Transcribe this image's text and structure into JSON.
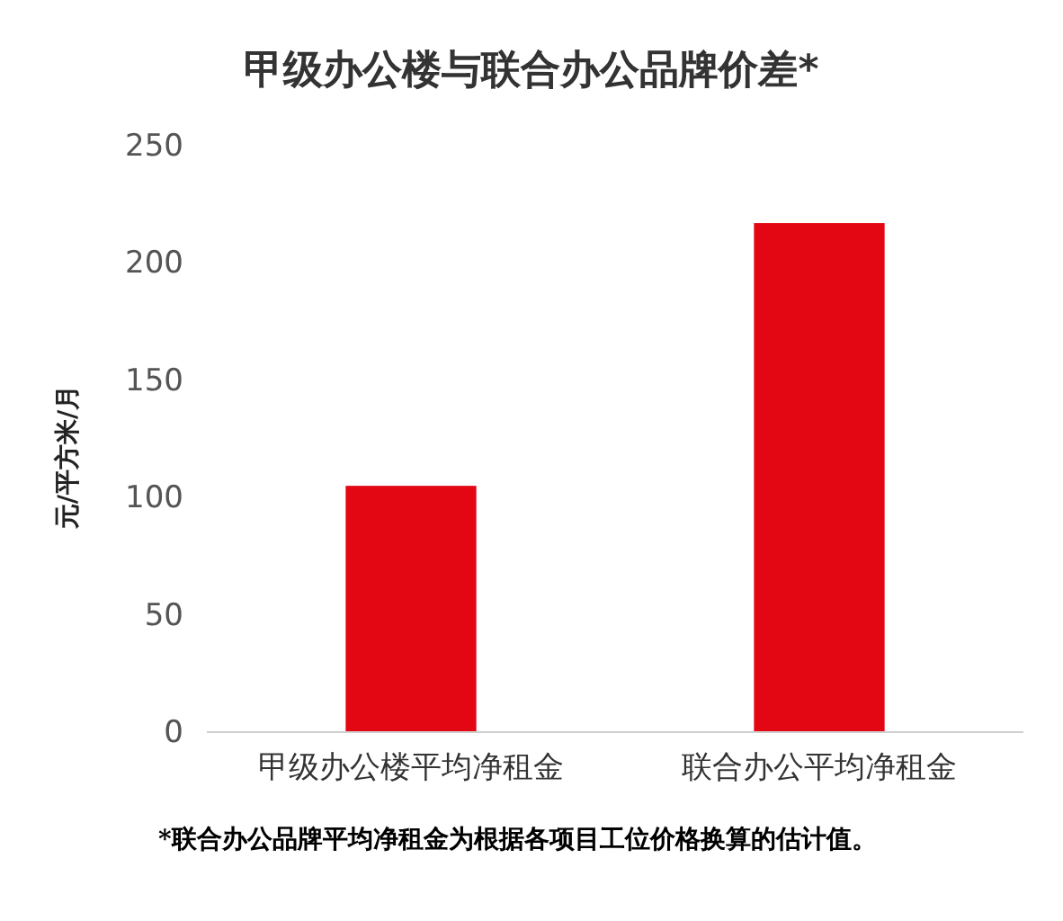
{
  "chart_data": {
    "type": "bar",
    "title": "甲级办公楼与联合办公品牌价差*",
    "categories": [
      "甲级办公楼平均净租金",
      "联合办公平均净租金"
    ],
    "values": [
      105,
      217
    ],
    "color": "#e30613",
    "ylabel": "元/平方米/月",
    "ylim": [
      0,
      250
    ],
    "yticks": [
      0,
      50,
      100,
      150,
      200,
      250
    ],
    "grid": false,
    "annotations": [
      "*联合办公品牌平均净租金为根据各项目工位价格换算的估计值。"
    ]
  }
}
